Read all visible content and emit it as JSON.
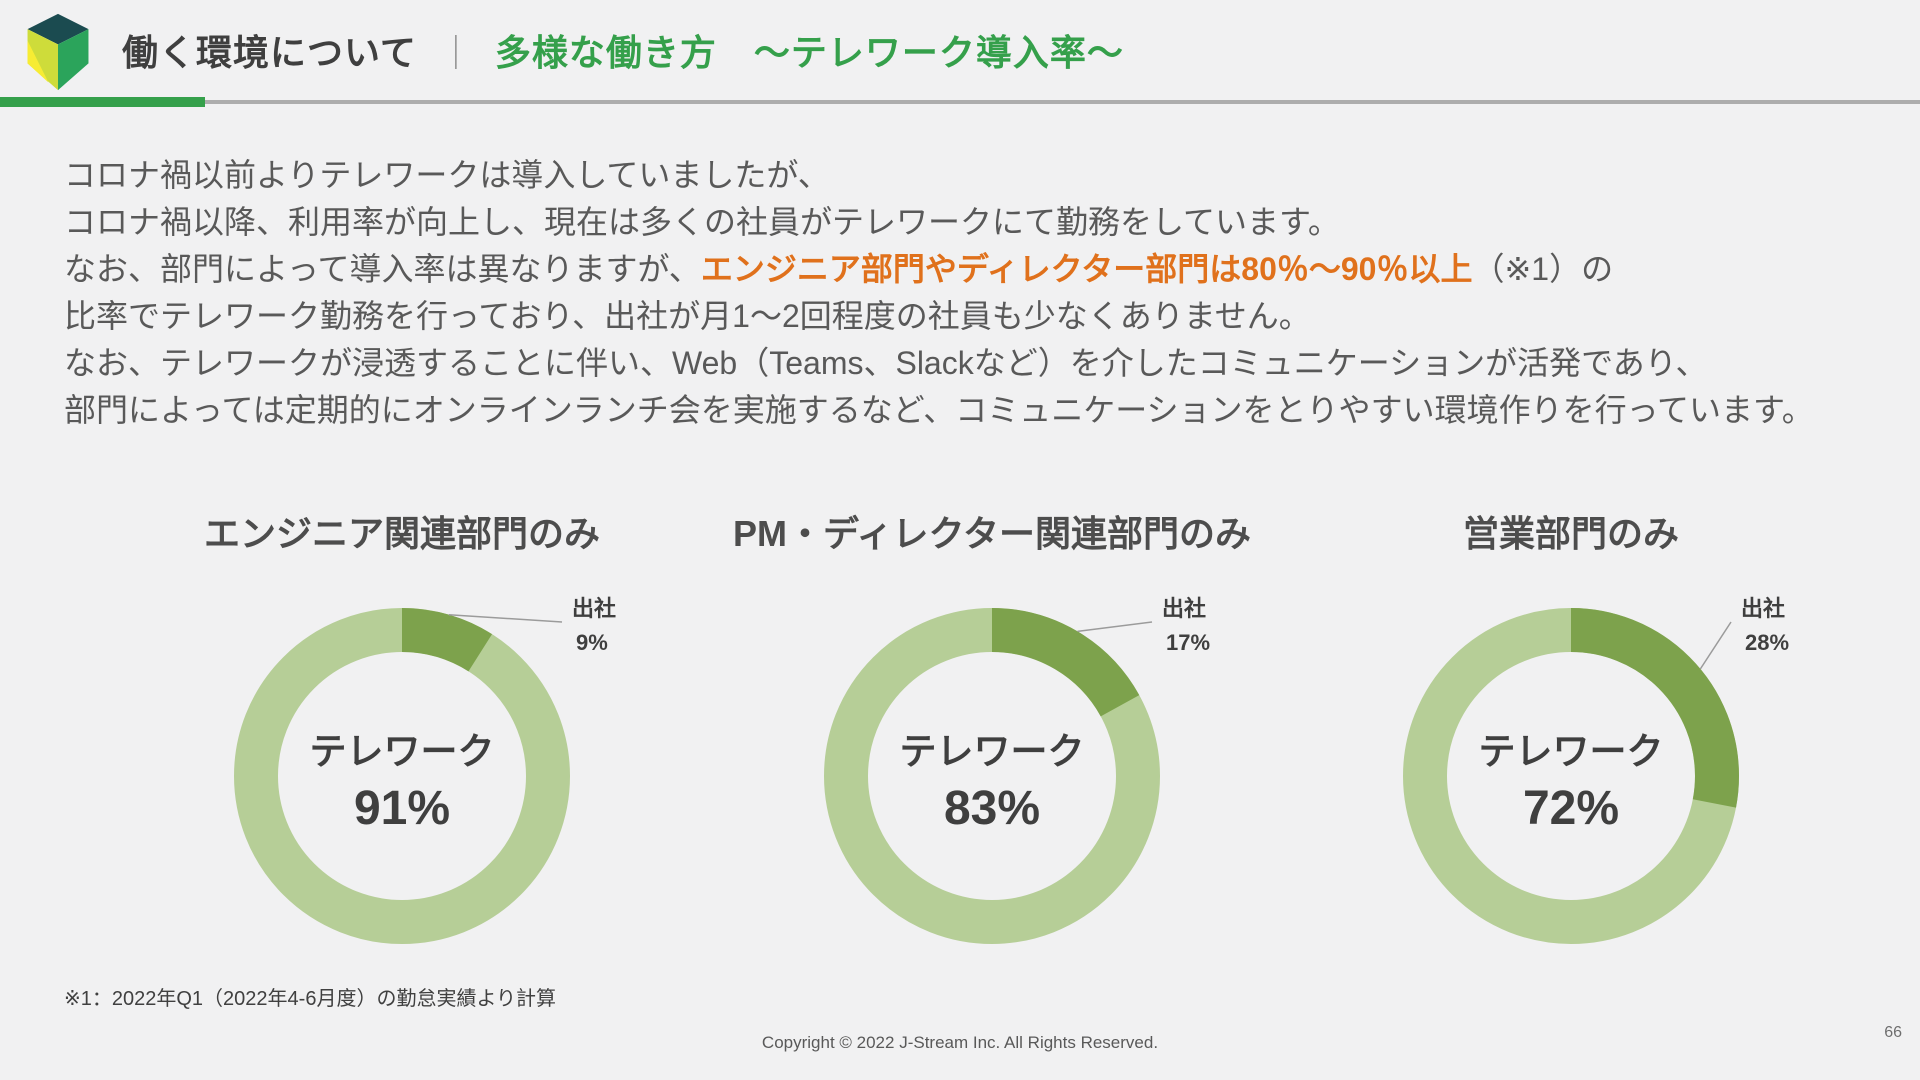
{
  "header": {
    "section_title": "働く環境について",
    "separator": "｜",
    "topic_title": "多様な働き方　～テレワーク導入率～"
  },
  "intro": {
    "line1": "コロナ禍以前よりテレワークは導入していましたが、",
    "line2": "コロナ禍以降、利用率が向上し、現在は多くの社員がテレワークにて勤務をしています。",
    "line3_before": "なお、部門によって導入率は異なりますが、",
    "line3_highlight": "エンジニア部門やディレクター部門は80％～90％以上",
    "line3_after": "（※1）の",
    "line4": "比率でテレワーク勤務を行っており、出社が月1～2回程度の社員も少なくありません。",
    "line5": "なお、テレワークが浸透することに伴い、Web（Teams、Slackなど）を介したコミュニケーションが活発であり、",
    "line6": "部門によっては定期的にオンラインランチ会を実施するなど、コミュニケーションをとりやすい環境作りを行っています。"
  },
  "chart_data": [
    {
      "type": "pie",
      "title": "エンジニア関連部門のみ",
      "labels": [
        "テレワーク",
        "出社"
      ],
      "values": [
        91,
        9
      ],
      "center_label": "テレワーク",
      "center_value": "91%",
      "callout_label": "出社",
      "callout_value": "9%"
    },
    {
      "type": "pie",
      "title": "PM・ディレクター関連部門のみ",
      "labels": [
        "テレワーク",
        "出社"
      ],
      "values": [
        83,
        17
      ],
      "center_label": "テレワーク",
      "center_value": "83%",
      "callout_label": "出社",
      "callout_value": "17%"
    },
    {
      "type": "pie",
      "title": "営業部門のみ",
      "labels": [
        "テレワーク",
        "出社"
      ],
      "values": [
        72,
        28
      ],
      "center_label": "テレワーク",
      "center_value": "72%",
      "callout_label": "出社",
      "callout_value": "28%"
    }
  ],
  "footnote": "※1：2022年Q1（2022年4-6月度）の勤怠実績より計算",
  "footer": {
    "copyright": "Copyright © 2022 J-Stream Inc. All Rights Reserved.",
    "page_number": "66"
  },
  "colors": {
    "accent_green": "#35A04B",
    "highlight_orange": "#E0711C",
    "telework_segment": "#B6CE97",
    "office_segment": "#7DA24C",
    "logo_top": "#1B4B50",
    "logo_right": "#2BA45B",
    "logo_left": "#CEDC3A",
    "logo_left_bottom": "#F7EC33",
    "callout_line": "#9B9B9B"
  }
}
